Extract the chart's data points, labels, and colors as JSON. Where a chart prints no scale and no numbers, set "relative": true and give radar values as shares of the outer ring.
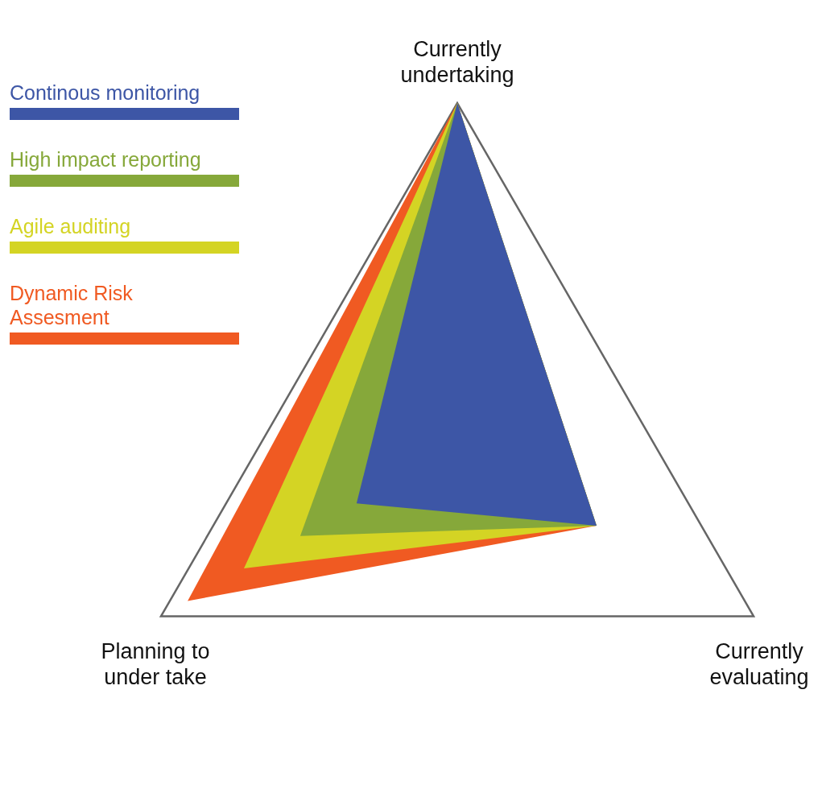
{
  "chart_data": {
    "type": "radar",
    "relative": true,
    "categories": [
      "Currently undertaking",
      "Currently evaluating",
      "Planning to under take"
    ],
    "series": [
      {
        "name": "Continous monitoring",
        "color": "#3d56a6",
        "values": [
          1,
          0.47,
          0.34
        ]
      },
      {
        "name": "High impact reporting",
        "color": "#86a83a",
        "values": [
          1,
          0.47,
          0.53
        ]
      },
      {
        "name": "Agile auditing",
        "color": "#d4d424",
        "values": [
          1,
          0.47,
          0.72
        ]
      },
      {
        "name": "Dynamic Risk Assesment",
        "color": "#f05a22",
        "values": [
          1,
          0.47,
          0.91
        ]
      }
    ],
    "grid": true,
    "legend": "top left"
  }
}
